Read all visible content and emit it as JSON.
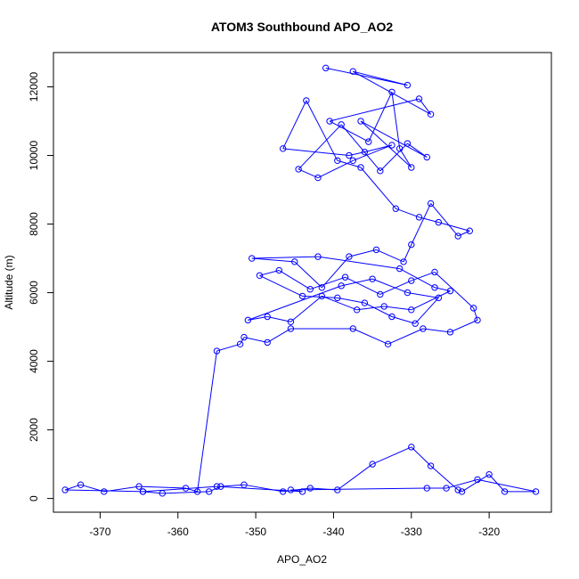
{
  "chart_data": {
    "type": "line",
    "title": "ATOM3 Southbound APO_AO2",
    "xlabel": "APO_AO2",
    "ylabel": "Altitude (m)",
    "xlim": [
      -376,
      -312
    ],
    "ylim": [
      -400,
      13000
    ],
    "x_ticks": [
      -370,
      -360,
      -350,
      -340,
      -330,
      -320
    ],
    "y_ticks": [
      0,
      2000,
      4000,
      6000,
      8000,
      10000,
      12000
    ],
    "grid": false,
    "legend": "none",
    "series": [
      {
        "color": "#0000ff",
        "marker": "open-circle",
        "x": [
          -341,
          -330.5,
          -337.5,
          -327.5,
          -329,
          -340.5,
          -335.5,
          -332.5,
          -331.5,
          -330,
          -336.5,
          -328,
          -330.5,
          -334,
          -339,
          -344.5,
          -342,
          -337.5,
          -332.5,
          -336,
          -338,
          -346.5,
          -343.5,
          -339.5,
          -336.5,
          -332,
          -329,
          -326.5,
          -322.5,
          -324,
          -327.5,
          -330,
          -331,
          -334.5,
          -338,
          -341.5,
          -345,
          -350.5,
          -342,
          -331.5,
          -327,
          -325,
          -330,
          -333.5,
          -337,
          -341.5,
          -345.5,
          -348.5,
          -351,
          -339,
          -335,
          -330.5,
          -326.5,
          -329.5,
          -332.5,
          -336,
          -339.5,
          -344,
          -349.5,
          -347,
          -343,
          -338.5,
          -334,
          -330,
          -327,
          -322,
          -321.5,
          -325,
          -328.5,
          -333,
          -337.5,
          -345.5,
          -348.5,
          -351.5,
          -352,
          -355,
          -357.5,
          -359,
          -365,
          -369.5,
          -372.5,
          -374.5,
          -364.5,
          -362,
          -356,
          -354.5,
          -351.5,
          -346.5,
          -343,
          -339.5,
          -335,
          -330,
          -327.5,
          -324,
          -323.5,
          -320,
          -318,
          -314,
          -321.5,
          -325.5,
          -328,
          -345.5,
          -344,
          -355,
          -364.5
        ],
        "y": [
          12550,
          12050,
          12450,
          11200,
          11650,
          11000,
          10400,
          11850,
          10200,
          9650,
          11000,
          9950,
          10350,
          9550,
          10900,
          9600,
          9350,
          9850,
          10300,
          10100,
          10000,
          10200,
          11600,
          9850,
          9650,
          8450,
          8200,
          8050,
          7800,
          7650,
          8600,
          7400,
          6900,
          7250,
          7050,
          6150,
          6900,
          7000,
          7050,
          6700,
          6150,
          6050,
          5500,
          5600,
          5500,
          5900,
          5150,
          5300,
          5200,
          6200,
          6400,
          6000,
          5850,
          5100,
          5300,
          5700,
          5850,
          5900,
          6500,
          6650,
          6100,
          6450,
          5950,
          6350,
          6600,
          5550,
          5200,
          4850,
          4950,
          4500,
          4950,
          4950,
          4550,
          4700,
          4500,
          4300,
          200,
          300,
          350,
          200,
          400,
          250,
          200,
          150,
          200,
          350,
          400,
          200,
          300,
          250,
          1000,
          1500,
          950,
          250,
          200,
          700,
          200,
          200,
          550,
          300,
          300,
          250,
          200,
          350,
          200
        ]
      }
    ]
  }
}
